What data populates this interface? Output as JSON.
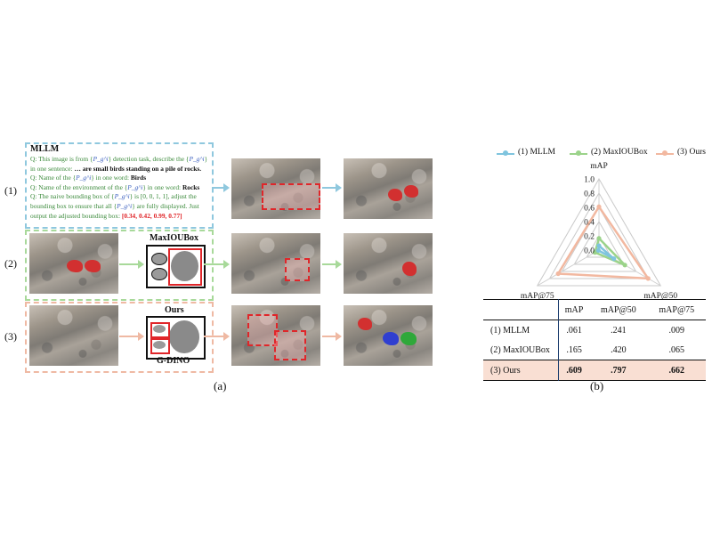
{
  "panel_a": {
    "caption": "(a)",
    "row_labels": [
      "(1)",
      "(2)",
      "(3)"
    ],
    "mllm": {
      "title": "MLLM",
      "q1_pre": "Q: This image is from {",
      "q1_sym": "P_g^i",
      "q1_mid": "} detection task, describe the {",
      "q1_post": "} in one sentence: ",
      "q1_answer": "… are small birds standing on a pile of rocks.",
      "q2_pre": "Q: Name of the {",
      "q2_post": "} in one word: ",
      "q2_answer": "Birds",
      "q3_pre": "Q: Name of the environment of the {",
      "q3_post": "} in one word: ",
      "q3_answer": "Rocks",
      "q4_pre": "Q: The naive bounding box of {",
      "q4_mid": "} is [0, 0, 1, 1], adjust the bounding box to ensure that all {",
      "q4_post": "} are fully displayed. Just output the adjusted bounding box: ",
      "q4_answer": "[0.34, 0.42, 0.99, 0.77]"
    },
    "maxioubox_label": "MaxIOUBox",
    "ours_label": "Ours",
    "gdino_label": "G-DINO"
  },
  "panel_b": {
    "caption": "(b)",
    "legend": [
      "(1) MLLM",
      "(2) MaxIOUBox",
      "(3) Ours"
    ],
    "table": {
      "headers": [
        "",
        "mAP",
        "mAP@50",
        "mAP@75"
      ],
      "rows": [
        [
          "(1) MLLM",
          ".061",
          ".241",
          ".009"
        ],
        [
          "(2) MaxIOUBox",
          ".165",
          ".420",
          ".065"
        ],
        [
          "(3) Ours",
          ".609",
          ".797",
          ".662"
        ]
      ]
    }
  },
  "chart_data": {
    "type": "radar",
    "axes": [
      "mAP",
      "mAP@50",
      "mAP@75"
    ],
    "rlim": [
      0,
      1.0
    ],
    "ticks": [
      "0.0",
      "0.2",
      "0.4",
      "0.6",
      "0.8",
      "1.0"
    ],
    "series": [
      {
        "name": "(1) MLLM",
        "values": [
          0.061,
          0.241,
          0.009
        ],
        "color": "#7fc4de"
      },
      {
        "name": "(2) MaxIOUBox",
        "values": [
          0.165,
          0.42,
          0.065
        ],
        "color": "#9bd38a"
      },
      {
        "name": "(3) Ours",
        "values": [
          0.609,
          0.797,
          0.662
        ],
        "color": "#f2b8a0"
      }
    ],
    "legend_position": "top"
  },
  "colors": {
    "row1": "#8fc8de",
    "row2": "#a8d99a",
    "row3": "#efb9a3",
    "ours_highlight": "#f9dfd3",
    "red": "#e0262a"
  }
}
